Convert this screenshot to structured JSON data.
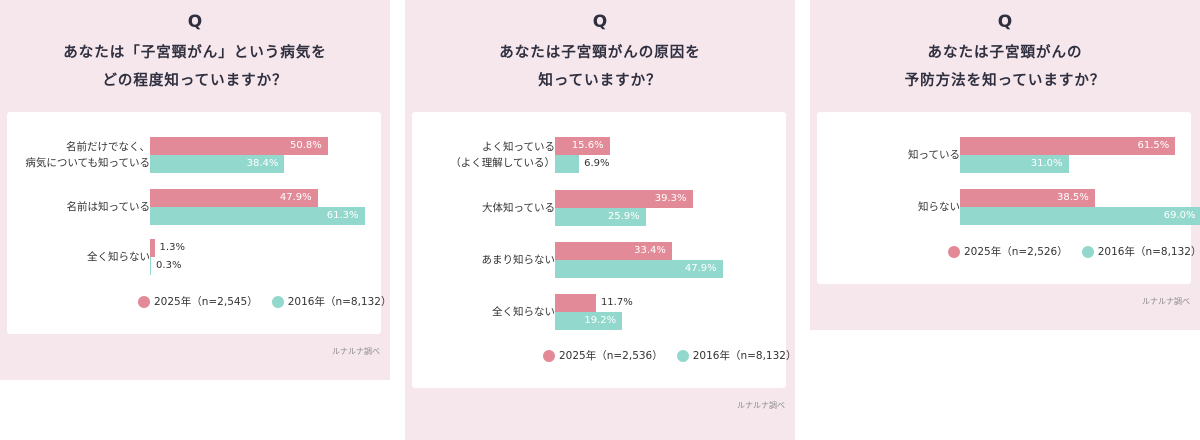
{
  "source_note": "ルナルナ調べ",
  "colors": {
    "s2025": "#e28a98",
    "s2016": "#93d8cc"
  },
  "chart_data": [
    {
      "type": "bar",
      "orientation": "horizontal",
      "q_mark": "Q",
      "title_lines": [
        "あなたは「子宮頸がん」という病気を",
        "どの程度知っていますか？"
      ],
      "categories": [
        [
          "名前だけでなく、",
          "病気についても知っている"
        ],
        [
          "名前は知っている"
        ],
        [
          "全く知らない"
        ]
      ],
      "series": [
        {
          "name": "2025年（n=2,545）",
          "values": [
            50.8,
            47.9,
            1.3
          ]
        },
        {
          "name": "2016年（n=8,132）",
          "values": [
            38.4,
            61.3,
            0.3
          ]
        }
      ],
      "unit": "%",
      "value_labels_2025": [
        "50.8%",
        "47.9%",
        "1.3%"
      ],
      "value_labels_2016": [
        "38.4%",
        "61.3%",
        "0.3%"
      ],
      "legend_2025": "2025年（n=2,545）",
      "legend_2016": "2016年（n=8,132）"
    },
    {
      "type": "bar",
      "orientation": "horizontal",
      "q_mark": "Q",
      "title_lines": [
        "あなたは子宮頸がんの原因を",
        "知っていますか？"
      ],
      "categories": [
        [
          "よく知っている",
          "（よく理解している）"
        ],
        [
          "大体知っている"
        ],
        [
          "あまり知らない"
        ],
        [
          "全く知らない"
        ]
      ],
      "series": [
        {
          "name": "2025年（n=2,536）",
          "values": [
            15.6,
            39.3,
            33.4,
            11.7
          ]
        },
        {
          "name": "2016年（n=8,132）",
          "values": [
            6.9,
            25.9,
            47.9,
            19.2
          ]
        }
      ],
      "unit": "%",
      "value_labels_2025": [
        "15.6%",
        "39.3%",
        "33.4%",
        "11.7%"
      ],
      "value_labels_2016": [
        "6.9%",
        "25.9%",
        "47.9%",
        "19.2%"
      ],
      "legend_2025": "2025年（n=2,536）",
      "legend_2016": "2016年（n=8,132）"
    },
    {
      "type": "bar",
      "orientation": "horizontal",
      "q_mark": "Q",
      "title_lines": [
        "あなたは子宮頸がんの",
        "予防方法を知っていますか？"
      ],
      "categories": [
        [
          "知っている"
        ],
        [
          "知らない"
        ]
      ],
      "series": [
        {
          "name": "2025年（n=2,526）",
          "values": [
            61.5,
            38.5
          ]
        },
        {
          "name": "2016年（n=8,132）",
          "values": [
            31.0,
            69.0
          ]
        }
      ],
      "unit": "%",
      "value_labels_2025": [
        "61.5%",
        "38.5%"
      ],
      "value_labels_2016": [
        "31.0%",
        "69.0%"
      ],
      "legend_2025": "2025年（n=2,526）",
      "legend_2016": "2016年（n=8,132）"
    }
  ]
}
